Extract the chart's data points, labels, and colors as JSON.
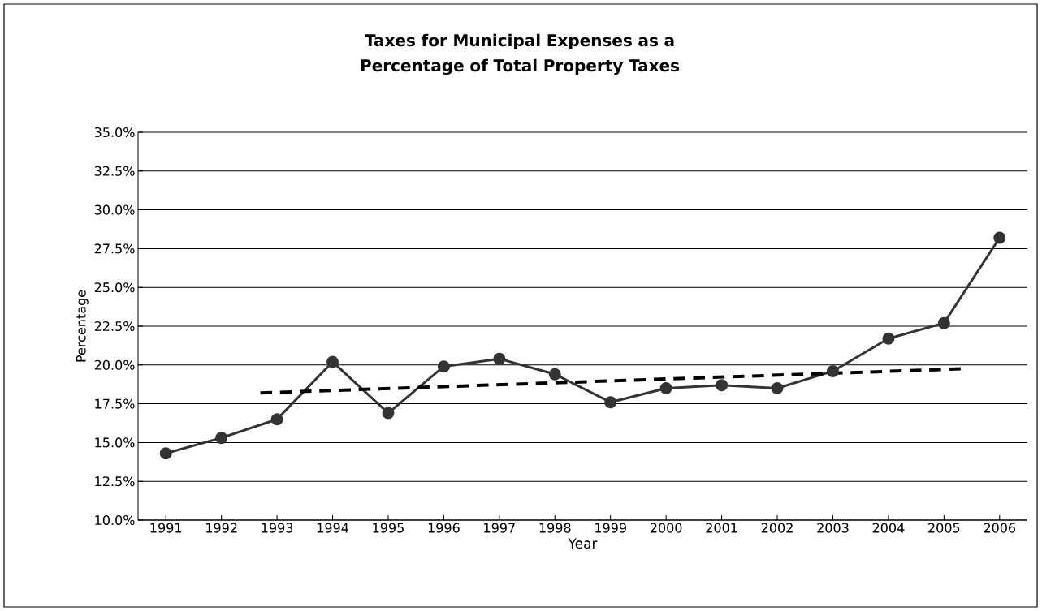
{
  "chart_data": {
    "type": "line",
    "title": "Taxes for Municipal Expenses as a Percentage of Total Property Taxes",
    "xlabel": "Year",
    "ylabel": "Percentage",
    "xlim": [
      1990.5,
      2006.5
    ],
    "xticks": [
      1991,
      1992,
      1993,
      1994,
      1995,
      1996,
      1997,
      1998,
      1999,
      2000,
      2001,
      2002,
      2003,
      2004,
      2005,
      2006
    ],
    "ylim": [
      10,
      35
    ],
    "yticks": [
      {
        "value": 10,
        "label": "10.0%"
      },
      {
        "value": 12.5,
        "label": "12.5%"
      },
      {
        "value": 15,
        "label": "15.0%"
      },
      {
        "value": 17.5,
        "label": "17.5%"
      },
      {
        "value": 20,
        "label": "20.0%"
      },
      {
        "value": 22.5,
        "label": "22.5%"
      },
      {
        "value": 25,
        "label": "25.0%"
      },
      {
        "value": 27.5,
        "label": "27.5%"
      },
      {
        "value": 30,
        "label": "30.0%"
      },
      {
        "value": 32.5,
        "label": "32.5%"
      },
      {
        "value": 35,
        "label": "35.0%"
      }
    ],
    "grid": "y",
    "legend": false,
    "series": [
      {
        "color": "#333333",
        "marker": "circle",
        "line_style": "solid",
        "x": [
          1991,
          1992,
          1993,
          1994,
          1995,
          1996,
          1997,
          1998,
          1999,
          2000,
          2001,
          2002,
          2003,
          2004,
          2005,
          2006
        ],
        "values": [
          14.3,
          15.3,
          16.5,
          20.2,
          16.9,
          19.9,
          20.4,
          19.4,
          17.6,
          18.5,
          18.7,
          18.5,
          19.6,
          21.7,
          22.7,
          28.2
        ]
      },
      {
        "color": "#000000",
        "marker": "none",
        "line_style": "dashed",
        "x": [
          1992.7,
          2005.3
        ],
        "values": [
          18.2,
          19.75
        ]
      }
    ]
  }
}
